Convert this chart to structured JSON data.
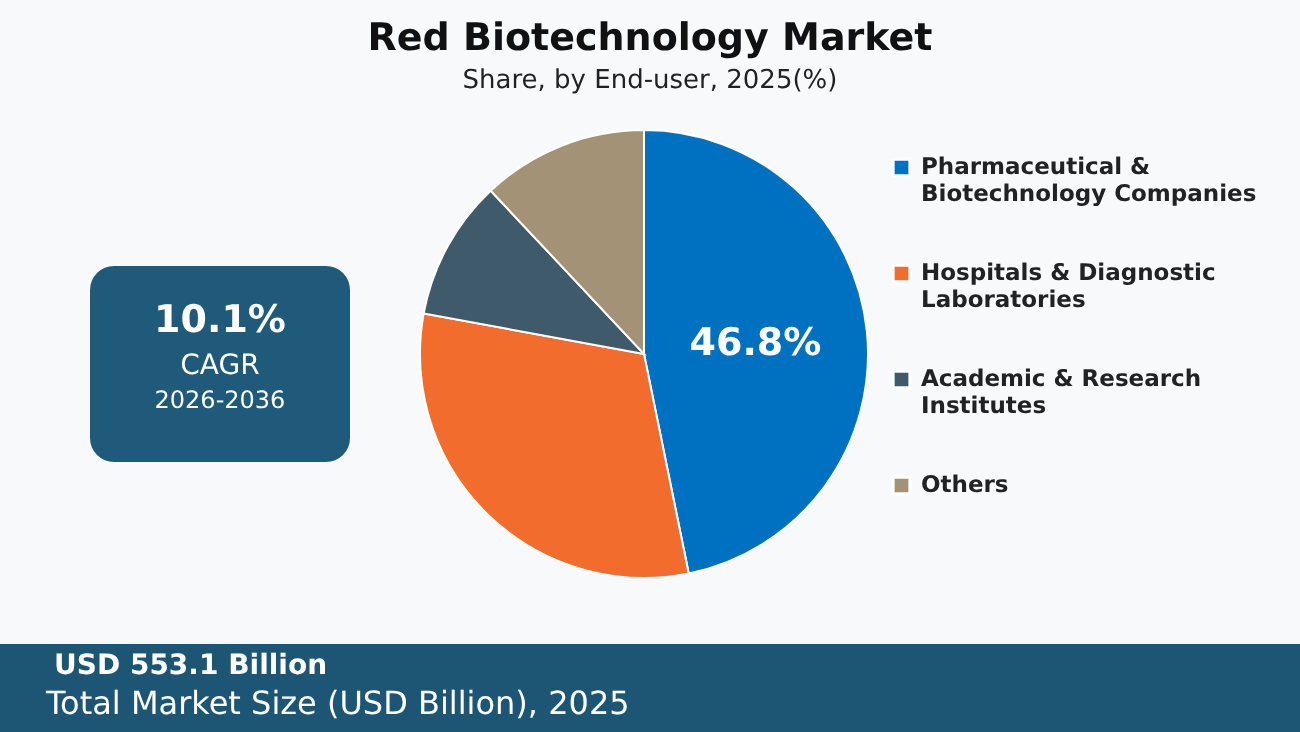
{
  "chart_data": {
    "type": "pie",
    "title": "Red Biotechnology Market",
    "subtitle": "Share, by End-user, 2025(%)",
    "categories": [
      "Pharmaceutical & Biotechnology Companies",
      "Hospitals & Diagnostic Laboratories",
      "Academic & Research Institutes",
      "Others"
    ],
    "values": [
      46.8,
      31.1,
      10.1,
      12.0
    ],
    "colors": [
      "#0070c0",
      "#f26d2d",
      "#3e5a6b",
      "#a39276"
    ],
    "value_labels": [
      "46.8%",
      null,
      null,
      null
    ],
    "legend": "right",
    "annotations": [
      "10.1%",
      "CAGR",
      "2026-2036",
      "USD 553.1 Billion",
      "Total Market Size (USD Billion), 2025"
    ]
  }
}
